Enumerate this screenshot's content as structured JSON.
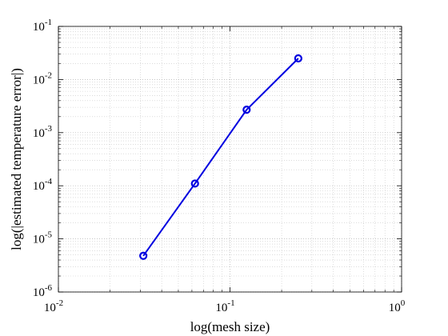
{
  "chart_data": {
    "type": "line",
    "xlabel": "log(mesh size)",
    "ylabel": "log(|estimated temperature error|)",
    "xscale": "log",
    "yscale": "log",
    "xlim": [
      0.01,
      1
    ],
    "ylim": [
      1e-06,
      0.1
    ],
    "grid": true,
    "x_ticks": [
      {
        "value": 0.01,
        "base": "10",
        "exp": "-2"
      },
      {
        "value": 0.1,
        "base": "10",
        "exp": "-1"
      },
      {
        "value": 1,
        "base": "10",
        "exp": "0"
      }
    ],
    "y_ticks": [
      {
        "value": 1e-06,
        "base": "10",
        "exp": "-6"
      },
      {
        "value": 1e-05,
        "base": "10",
        "exp": "-5"
      },
      {
        "value": 0.0001,
        "base": "10",
        "exp": "-4"
      },
      {
        "value": 0.001,
        "base": "10",
        "exp": "-3"
      },
      {
        "value": 0.01,
        "base": "10",
        "exp": "-2"
      },
      {
        "value": 0.1,
        "base": "10",
        "exp": "-1"
      }
    ],
    "series": [
      {
        "color": "#0000e0",
        "marker": "circle",
        "x": [
          0.03125,
          0.0625,
          0.125,
          0.25
        ],
        "y": [
          4.8e-06,
          0.00011,
          0.0027,
          0.025
        ]
      }
    ]
  }
}
